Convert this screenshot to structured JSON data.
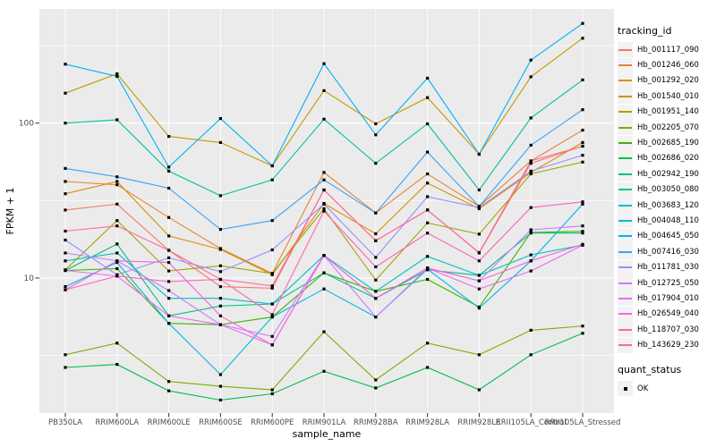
{
  "axes": {
    "y_label": "FPKM + 1",
    "x_label": "sample_name",
    "y_tick_labels": [
      "100",
      "10"
    ]
  },
  "legend": {
    "tracking_title": "tracking_id",
    "quant_title": "quant_status",
    "quant_label": "OK"
  },
  "chart_data": {
    "type": "line",
    "title": "",
    "xlabel": "sample_name",
    "ylabel": "FPKM + 1",
    "y_scale": "log10",
    "y_major_ticks": [
      100,
      10
    ],
    "y_minor_ticks": [
      316.23,
      31.62,
      3.162
    ],
    "ylim": [
      1.34,
      546
    ],
    "grid": "on",
    "legend_position": "right",
    "point_marker": "black-square (quant_status OK)",
    "panel_bg": "#EBEBEB",
    "grid_color": "#FFFFFF",
    "categories": [
      "PB350LA",
      "RRIM600LA",
      "RRIM600LE",
      "RRIM600SE",
      "RRIM600PE",
      "RRIM901LA",
      "RRIM928BA",
      "RRIM928LA",
      "RRIM928LE",
      "RRII105LA_Control",
      "RRII105LA_Stressed"
    ],
    "series": [
      {
        "name": "Hb_001117_090",
        "color": "#F8766D",
        "values": [
          27.5,
          30,
          15.1,
          8.8,
          8.6,
          37,
          17.4,
          27.5,
          14.5,
          55,
          71
        ]
      },
      {
        "name": "Hb_001246_060",
        "color": "#EA8331",
        "values": [
          42,
          40,
          24.6,
          15.5,
          10.7,
          48,
          26.3,
          47,
          29,
          57,
          90
        ]
      },
      {
        "name": "Hb_001292_020",
        "color": "#D89000",
        "values": [
          35,
          42,
          18.7,
          15.3,
          10.5,
          30.3,
          19.3,
          41,
          28,
          48,
          75
        ]
      },
      {
        "name": "Hb_001540_010",
        "color": "#C09B00",
        "values": [
          156,
          208,
          82,
          75,
          53,
          162,
          99,
          146,
          63,
          199,
          353
        ]
      },
      {
        "name": "Hb_001951_140",
        "color": "#A3A500",
        "values": [
          11.3,
          23.5,
          11.1,
          12,
          10.7,
          28,
          9.7,
          22.7,
          19.2,
          47,
          56
        ]
      },
      {
        "name": "Hb_002205_070",
        "color": "#7CAE00",
        "values": [
          3.2,
          3.8,
          2.15,
          2.0,
          1.9,
          4.5,
          2.2,
          3.8,
          3.2,
          4.6,
          4.9
        ]
      },
      {
        "name": "Hb_002685_190",
        "color": "#39B600",
        "values": [
          11.2,
          11.5,
          5.1,
          5.0,
          5.6,
          10.8,
          8.2,
          9.8,
          6.5,
          19.7,
          20
        ]
      },
      {
        "name": "Hb_002686_020",
        "color": "#00BB4E",
        "values": [
          2.65,
          2.77,
          1.87,
          1.63,
          1.79,
          2.5,
          1.95,
          2.65,
          1.9,
          3.2,
          4.4
        ]
      },
      {
        "name": "Hb_002942_190",
        "color": "#00BF7D",
        "values": [
          11.2,
          16.6,
          5.7,
          6.6,
          6.8,
          10.8,
          7.4,
          11.3,
          10.4,
          19.5,
          19.5
        ]
      },
      {
        "name": "Hb_003050_080",
        "color": "#00C1A3",
        "values": [
          100,
          105,
          49,
          34,
          43,
          106,
          55,
          99,
          37,
          108,
          190
        ]
      },
      {
        "name": "Hb_003683_120",
        "color": "#00BFC4",
        "values": [
          12.9,
          14.5,
          7.4,
          7.4,
          6.8,
          14,
          8.2,
          13.8,
          10.4,
          14.1,
          16.3
        ]
      },
      {
        "name": "Hb_004048_110",
        "color": "#00BAE0",
        "values": [
          8.8,
          12.6,
          5.1,
          2.38,
          5.6,
          8.5,
          5.6,
          11.4,
          6.4,
          12.9,
          30
        ]
      },
      {
        "name": "Hb_004645_050",
        "color": "#00B0F6",
        "values": [
          240,
          200,
          52,
          107,
          53,
          242,
          84,
          195,
          63,
          255,
          440
        ]
      },
      {
        "name": "Hb_007416_030",
        "color": "#35A2FF",
        "values": [
          51,
          45,
          38,
          20.6,
          23.5,
          43,
          26.3,
          65,
          29,
          72,
          122
        ]
      },
      {
        "name": "Hb_011781_030",
        "color": "#9590FF",
        "values": [
          17.6,
          10.5,
          13.5,
          11,
          15.2,
          30,
          13.6,
          33.5,
          28.5,
          49,
          62
        ]
      },
      {
        "name": "Hb_012725_050",
        "color": "#C77CFF",
        "values": [
          14.5,
          12.9,
          8.3,
          5.0,
          4.2,
          14,
          5.6,
          11.6,
          9.6,
          20.5,
          21.7
        ]
      },
      {
        "name": "Hb_017904_010",
        "color": "#E76BF3",
        "values": [
          11.2,
          10.3,
          5.7,
          5.0,
          3.7,
          14,
          7.4,
          11.6,
          8.5,
          11.1,
          16.3
        ]
      },
      {
        "name": "Hb_026549_040",
        "color": "#FA62DB",
        "values": [
          8.4,
          12.9,
          12.6,
          5.7,
          3.7,
          14,
          7.4,
          11.6,
          9.6,
          12.9,
          16.5
        ]
      },
      {
        "name": "Hb_118707_030",
        "color": "#FF62BC",
        "values": [
          8.4,
          10.3,
          9.5,
          9.8,
          5.8,
          27,
          11.8,
          19.5,
          12.9,
          28.5,
          31
        ]
      },
      {
        "name": "Hb_143629_230",
        "color": "#FF6A98",
        "values": [
          20.1,
          21.7,
          15.1,
          9.8,
          8.9,
          37,
          17.4,
          27.5,
          14.6,
          57,
          71
        ]
      }
    ]
  }
}
